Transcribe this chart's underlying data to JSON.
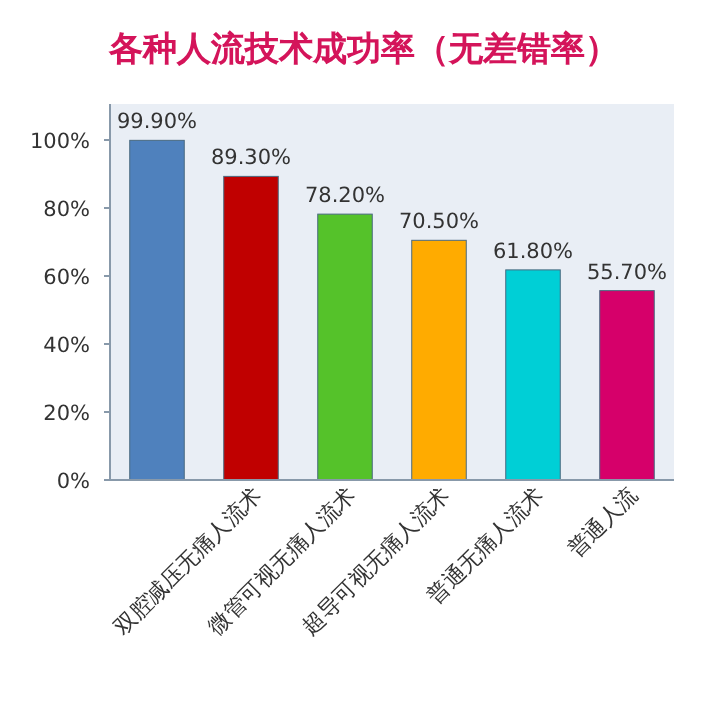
{
  "chart_data": {
    "type": "bar",
    "title": "各种人流技术成功率（无差错率）",
    "categories": [
      null,
      "双腔减压无痛人流术",
      "微管可视无痛人流术",
      "超导可视无痛人流术",
      "普通无痛人流术",
      "普通人流"
    ],
    "values": [
      99.9,
      89.3,
      78.2,
      70.5,
      61.8,
      55.7
    ],
    "value_labels": [
      "99.90%",
      "89.30%",
      "78.20%",
      "70.50%",
      "61.80%",
      "55.70%"
    ],
    "colors": [
      "#4f81bd",
      "#c00000",
      "#55c22a",
      "#ffab00",
      "#00cfd6",
      "#d6006a"
    ],
    "ylim": [
      0,
      100
    ],
    "yticks": [
      {
        "value": 0,
        "label": "0%"
      },
      {
        "value": 20,
        "label": "20%"
      },
      {
        "value": 40,
        "label": "40%"
      },
      {
        "value": 60,
        "label": "60%"
      },
      {
        "value": 80,
        "label": "80%"
      },
      {
        "value": 100,
        "label": "100%"
      }
    ]
  }
}
